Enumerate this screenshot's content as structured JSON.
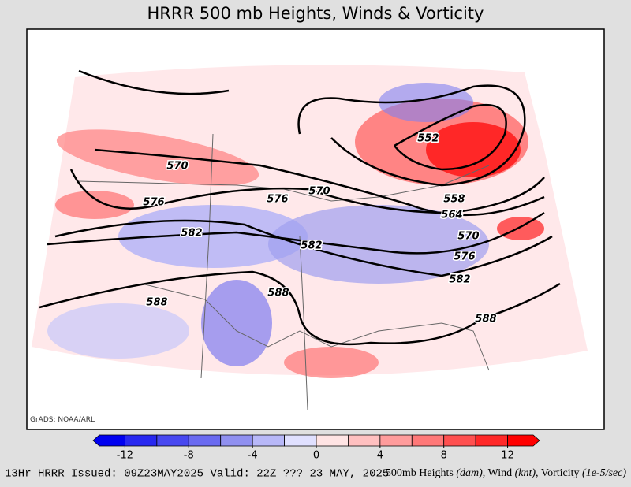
{
  "header": {
    "title": "HRRR 500 mb Heights, Winds & Vorticity"
  },
  "map": {
    "credit": "GrADS: NOAA/ARL",
    "contour_labels": [
      "570",
      "576",
      "582",
      "588",
      "552",
      "558",
      "564",
      "570",
      "576",
      "582",
      "588",
      "576",
      "582",
      "588",
      "570"
    ]
  },
  "colorbar": {
    "lim": [
      -14,
      14
    ],
    "ticks": [
      -12,
      -8,
      -4,
      0,
      4,
      8,
      12
    ],
    "colors": [
      "#0000f0",
      "#2828f0",
      "#4848f0",
      "#6a6af0",
      "#9090f0",
      "#b8b8f8",
      "#e0e0ff",
      "#ffe4e4",
      "#ffc0c0",
      "#ff9c9c",
      "#ff7878",
      "#ff5050",
      "#ff2828",
      "#ff0000"
    ]
  },
  "footer": {
    "left": "13Hr HRRR Issued: 09Z23MAY2025 Valid: 22Z ??? 23 MAY, 2025",
    "right": [
      "500mb Heights ",
      "(dam)",
      ", Wind ",
      "(knt)",
      ", Vorticity ",
      "(1e-5/sec)"
    ]
  }
}
